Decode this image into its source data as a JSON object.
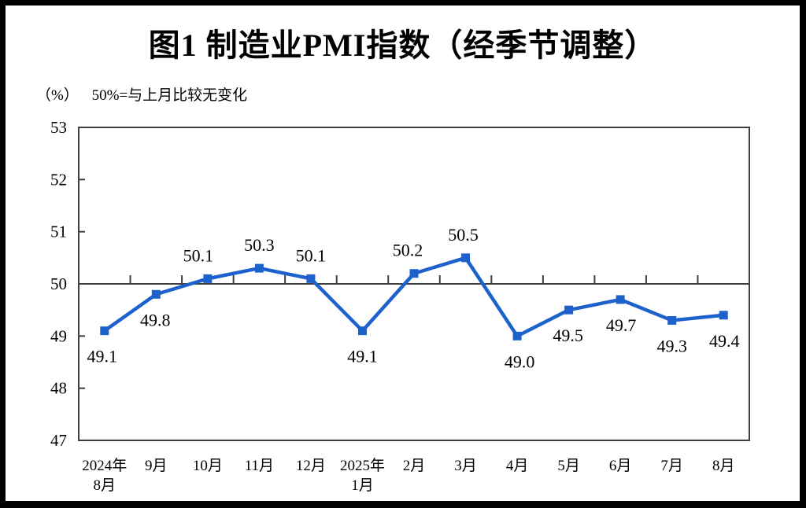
{
  "chart_data": {
    "type": "line",
    "title": "图1  制造业PMI指数（经季节调整）",
    "unit_label": "（%）",
    "note": "50%=与上月比较无变化",
    "categories": [
      "2024年\n8月",
      "9月",
      "10月",
      "11月",
      "12月",
      "2025年\n1月",
      "2月",
      "3月",
      "4月",
      "5月",
      "6月",
      "7月",
      "8月"
    ],
    "series": [
      {
        "name": "制造业PMI",
        "values": [
          49.1,
          49.8,
          50.1,
          50.3,
          50.1,
          49.1,
          50.2,
          50.5,
          49.0,
          49.5,
          49.7,
          49.3,
          49.4
        ]
      }
    ],
    "ylim": [
      47,
      53
    ],
    "ytick_step": 1,
    "reference_line": 50,
    "grid": false,
    "legend": "none",
    "label_side": [
      "below",
      "below",
      "above",
      "above",
      "above",
      "below",
      "above",
      "above",
      "below",
      "below",
      "below",
      "below",
      "below"
    ],
    "label_dx": [
      -3,
      -1,
      -12,
      0,
      0,
      0,
      -8,
      -3,
      3,
      -1,
      1,
      0,
      1
    ],
    "colors": {
      "line": "#1d62cc",
      "axis": "#3f3f3f",
      "text": "#000000",
      "frame": "#000000",
      "background": "#ffffff"
    }
  }
}
